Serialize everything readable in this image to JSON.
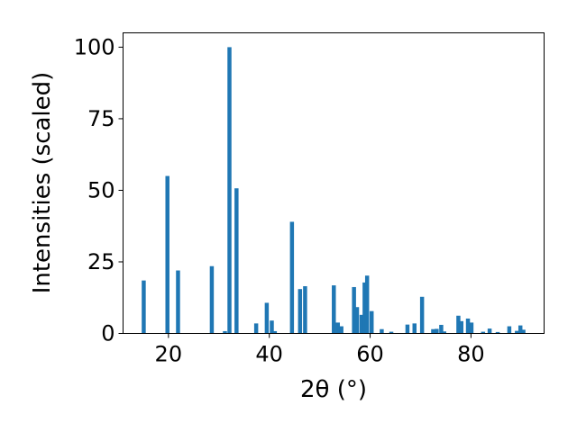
{
  "chart_data": {
    "type": "bar",
    "xlabel": "2θ (°)",
    "ylabel": "Intensities (scaled)",
    "xlim": [
      11,
      94.5
    ],
    "ylim": [
      0,
      105
    ],
    "xticks": [
      20,
      40,
      60,
      80
    ],
    "yticks": [
      0,
      25,
      50,
      75,
      100
    ],
    "bar_color": "#1f77b4",
    "bar_width": 0.8,
    "x": [
      15.1,
      19.8,
      21.9,
      28.6,
      31.2,
      32.1,
      33.5,
      37.4,
      39.5,
      40.5,
      41.1,
      44.5,
      46.1,
      47.1,
      52.8,
      53.6,
      54.3,
      56.8,
      57.4,
      58.3,
      58.9,
      59.4,
      60.3,
      62.3,
      64.2,
      67.4,
      68.8,
      70.3,
      72.5,
      73.2,
      74.1,
      74.7,
      77.5,
      78.1,
      79.4,
      80.1,
      82.4,
      83.7,
      85.3,
      87.6,
      89.1,
      89.8,
      90.4
    ],
    "values": [
      18.5,
      55,
      22,
      23.5,
      0.8,
      100,
      50.7,
      3.5,
      10.7,
      4.5,
      0.8,
      39,
      15.5,
      16.5,
      16.8,
      3.8,
      2.5,
      16.2,
      9.2,
      6.5,
      17.8,
      20.2,
      7.8,
      1.5,
      0.6,
      3.1,
      3.5,
      12.8,
      1.5,
      1.6,
      3.0,
      0.7,
      6.2,
      4.3,
      5.2,
      3.8,
      0.6,
      1.7,
      0.5,
      2.5,
      0.9,
      2.8,
      1.3
    ]
  }
}
